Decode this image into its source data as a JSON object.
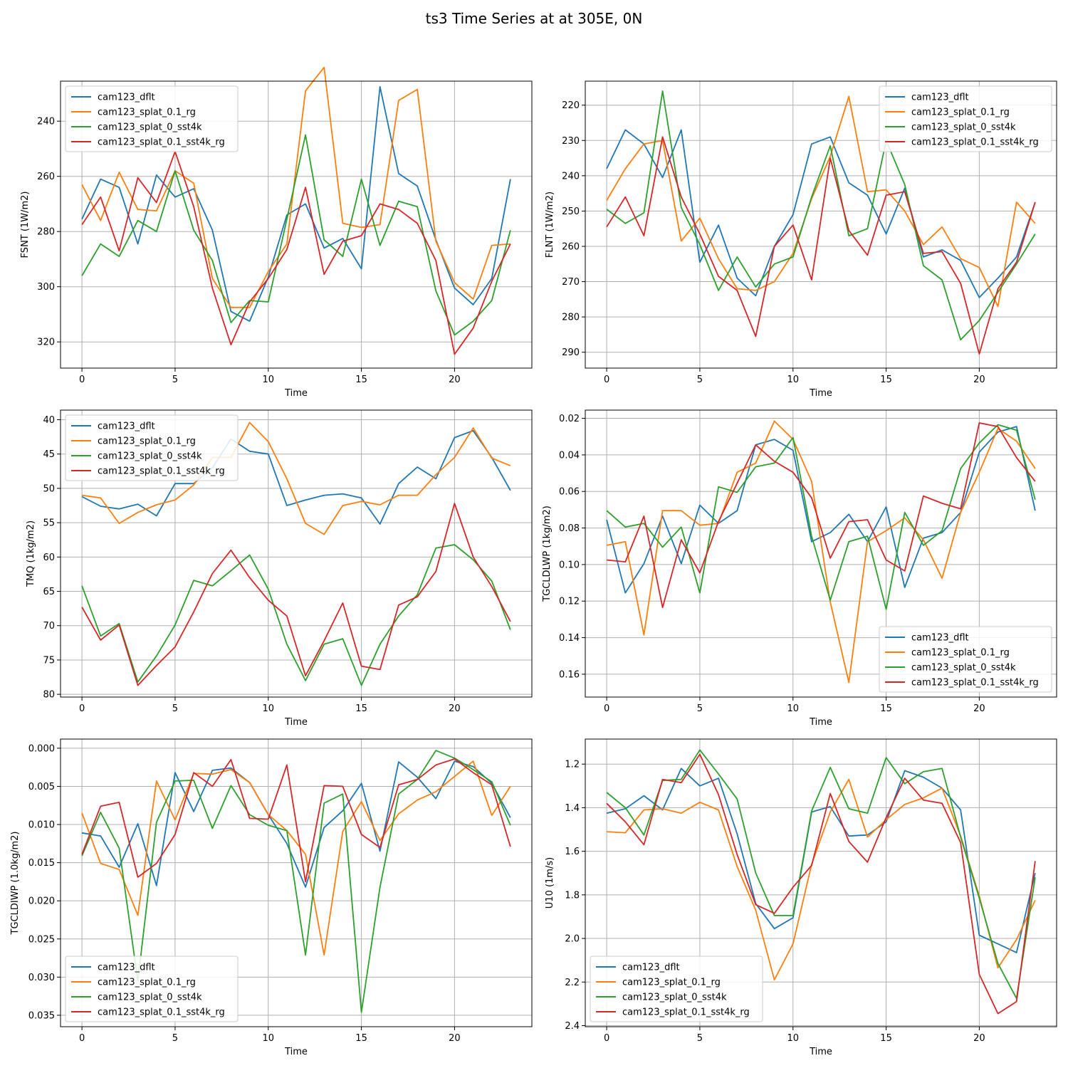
{
  "figure": {
    "title": "ts3 Time Series at at 305E, 0N"
  },
  "colors": {
    "cam123_dflt": "#1f77b4",
    "cam123_splat_0.1_rg": "#ff7f0e",
    "cam123_splat_0_sst4k": "#2ca02c",
    "cam123_splat_0.1_sst4k_rg": "#d62728"
  },
  "chart_data": [
    {
      "type": "line",
      "title": "",
      "xlabel": "Time",
      "ylabel": "FSNT (1W/m2)",
      "x": [
        0,
        1,
        2,
        3,
        4,
        5,
        6,
        7,
        8,
        9,
        10,
        11,
        12,
        13,
        14,
        15,
        16,
        17,
        18,
        19,
        20,
        21,
        22,
        23
      ],
      "xlim": [
        -1.15,
        24.15
      ],
      "ylim": [
        329.5,
        225.5
      ],
      "y_inverted": true,
      "xticks": [
        0,
        5,
        10,
        15,
        20
      ],
      "yticks": [
        240,
        260,
        280,
        300,
        320
      ],
      "grid": true,
      "legend": "top-left",
      "series": [
        {
          "name": "cam123_dflt",
          "values": [
            275.5,
            261,
            264,
            284.5,
            259.5,
            267.5,
            264.5,
            279.5,
            309,
            312.5,
            296.5,
            274,
            270,
            286,
            282.5,
            293.5,
            227.5,
            259,
            263.5,
            283,
            300.5,
            306.5,
            297,
            261
          ]
        },
        {
          "name": "cam123_splat_0.1_rg",
          "values": [
            263,
            276,
            258.5,
            272,
            272.5,
            258,
            262.5,
            297,
            307.5,
            307.5,
            294.5,
            284.5,
            229,
            220.5,
            277,
            278.5,
            277.5,
            232.5,
            228.5,
            283.5,
            298.5,
            304.5,
            285,
            284.5
          ]
        },
        {
          "name": "cam123_splat_0_sst4k",
          "values": [
            296,
            284.5,
            289,
            276,
            280,
            258,
            279.5,
            290.5,
            313,
            305,
            305.5,
            275.5,
            245,
            283,
            289,
            261,
            285,
            269,
            271,
            301.5,
            317.5,
            312.5,
            305,
            279.5
          ]
        },
        {
          "name": "cam123_splat_0.1_sst4k_rg",
          "values": [
            277.5,
            267.5,
            287,
            260.5,
            269.5,
            251,
            271,
            300.5,
            321,
            305.5,
            297,
            286.5,
            264,
            295.5,
            283.5,
            281.5,
            270,
            272,
            277,
            290.5,
            324.5,
            315,
            298,
            284.5
          ]
        }
      ]
    },
    {
      "type": "line",
      "title": "",
      "xlabel": "Time",
      "ylabel": "FLNT (1W/m2)",
      "x": [
        0,
        1,
        2,
        3,
        4,
        5,
        6,
        7,
        8,
        9,
        10,
        11,
        12,
        13,
        14,
        15,
        16,
        17,
        18,
        19,
        20,
        21,
        22,
        23
      ],
      "xlim": [
        -1.15,
        24.15
      ],
      "ylim": [
        294.5,
        213.2
      ],
      "y_inverted": true,
      "xticks": [
        0,
        5,
        10,
        15,
        20
      ],
      "yticks": [
        220,
        230,
        240,
        250,
        260,
        270,
        280,
        290
      ],
      "grid": true,
      "legend": "top-right",
      "series": [
        {
          "name": "cam123_dflt",
          "values": [
            238,
            227,
            231,
            240.5,
            227,
            264.5,
            254,
            269,
            274,
            260,
            251,
            231,
            229,
            242,
            245.5,
            256.5,
            243.5,
            263,
            261,
            264,
            274.5,
            269,
            263,
            247.5
          ]
        },
        {
          "name": "cam123_splat_0.1_rg",
          "values": [
            247,
            238,
            231,
            230,
            258.5,
            252,
            263.5,
            272,
            272.5,
            270,
            262,
            246.5,
            234.5,
            217.5,
            244.5,
            244,
            250,
            259.5,
            254.5,
            263.5,
            266,
            277,
            247.5,
            253.5
          ]
        },
        {
          "name": "cam123_splat_0_sst4k",
          "values": [
            249.5,
            253.5,
            250.5,
            216,
            249,
            259.5,
            272.5,
            263,
            271.5,
            265,
            263,
            246,
            231.5,
            257,
            255,
            230,
            242.5,
            265.5,
            269.5,
            286.5,
            281,
            273,
            265,
            256.5
          ]
        },
        {
          "name": "cam123_splat_0.1_sst4k_rg",
          "values": [
            254.5,
            246,
            257,
            229,
            246,
            256.5,
            268.5,
            272.5,
            285.5,
            260,
            254,
            269.5,
            235,
            255.5,
            262.5,
            245.5,
            244.5,
            262,
            261.5,
            270.5,
            290.5,
            272,
            264.5,
            247.5
          ]
        }
      ]
    },
    {
      "type": "line",
      "title": "",
      "xlabel": "Time",
      "ylabel": "TMQ (1kg/m2)",
      "x": [
        0,
        1,
        2,
        3,
        4,
        5,
        6,
        7,
        8,
        9,
        10,
        11,
        12,
        13,
        14,
        15,
        16,
        17,
        18,
        19,
        20,
        21,
        22,
        23
      ],
      "xlim": [
        -1.15,
        24.15
      ],
      "ylim": [
        80.4,
        38.6
      ],
      "y_inverted": true,
      "xticks": [
        0,
        5,
        10,
        15,
        20
      ],
      "yticks": [
        40,
        45,
        50,
        55,
        60,
        65,
        70,
        75,
        80
      ],
      "grid": true,
      "legend": "top-left",
      "series": [
        {
          "name": "cam123_dflt",
          "values": [
            51.2,
            52.6,
            53,
            52.3,
            54,
            49.3,
            49.3,
            47,
            42.8,
            44.6,
            45,
            52.5,
            51.7,
            51,
            50.8,
            51.4,
            55.2,
            49.3,
            46.9,
            48.6,
            42.6,
            41.6,
            45.5,
            50.3
          ]
        },
        {
          "name": "cam123_splat_0.1_rg",
          "values": [
            51,
            51.4,
            55.1,
            53.5,
            52.4,
            51.7,
            49.5,
            45.5,
            45.5,
            40.4,
            43.2,
            48.6,
            55.1,
            56.7,
            52.5,
            51.9,
            52.4,
            51,
            51,
            48,
            45.5,
            41.2,
            45.6,
            46.7
          ]
        },
        {
          "name": "cam123_splat_0_sst4k",
          "values": [
            64.2,
            71.5,
            69.7,
            78.2,
            74.4,
            69.9,
            63.4,
            64.2,
            62,
            59.7,
            64.7,
            72.7,
            78,
            72.7,
            71.9,
            78.7,
            72.7,
            68.6,
            65.5,
            58.7,
            58.2,
            60.4,
            63.5,
            70.6
          ]
        },
        {
          "name": "cam123_splat_0.1_sst4k_rg",
          "values": [
            67.3,
            72.1,
            69.9,
            78.7,
            75.8,
            73.1,
            68,
            62.4,
            59,
            63,
            66.3,
            68.6,
            77.3,
            72.2,
            66.7,
            75.9,
            76.4,
            67,
            65.8,
            62.1,
            52.2,
            60,
            64.3,
            69.4
          ]
        }
      ]
    },
    {
      "type": "line",
      "title": "",
      "xlabel": "Time",
      "ylabel": "TGCLDLWP (1kg/m2)",
      "x": [
        0,
        1,
        2,
        3,
        4,
        5,
        6,
        7,
        8,
        9,
        10,
        11,
        12,
        13,
        14,
        15,
        16,
        17,
        18,
        19,
        20,
        21,
        22,
        23
      ],
      "xlim": [
        -1.15,
        24.15
      ],
      "ylim": [
        0.1725,
        0.0155
      ],
      "y_inverted": true,
      "xticks": [
        0,
        5,
        10,
        15,
        20
      ],
      "yticks": [
        0.02,
        0.04,
        0.06,
        0.08,
        0.1,
        0.12,
        0.14,
        0.16
      ],
      "grid": true,
      "legend": "bottom-right",
      "series": [
        {
          "name": "cam123_dflt",
          "values": [
            0.0755,
            0.1155,
            0.0995,
            0.0735,
            0.0995,
            0.0675,
            0.0775,
            0.0705,
            0.0345,
            0.0315,
            0.0375,
            0.0875,
            0.0825,
            0.0725,
            0.0875,
            0.0685,
            0.1125,
            0.0855,
            0.0825,
            0.0715,
            0.0385,
            0.0275,
            0.0245,
            0.0705
          ]
        },
        {
          "name": "cam123_splat_0.1_rg",
          "values": [
            0.0895,
            0.0875,
            0.1385,
            0.0705,
            0.0705,
            0.0785,
            0.0775,
            0.0495,
            0.0445,
            0.0215,
            0.0315,
            0.0545,
            0.1205,
            0.1645,
            0.0875,
            0.0815,
            0.0745,
            0.0865,
            0.1075,
            0.0715,
            0.0495,
            0.0255,
            0.0325,
            0.0475
          ]
        },
        {
          "name": "cam123_splat_0_sst4k",
          "values": [
            0.0705,
            0.0795,
            0.0775,
            0.0905,
            0.0795,
            0.1155,
            0.0575,
            0.0605,
            0.0465,
            0.0445,
            0.0305,
            0.0845,
            0.1195,
            0.0875,
            0.0845,
            0.1245,
            0.0715,
            0.0895,
            0.0815,
            0.0475,
            0.0335,
            0.0235,
            0.0265,
            0.0645
          ]
        },
        {
          "name": "cam123_splat_0.1_sst4k_rg",
          "values": [
            0.0975,
            0.0985,
            0.0735,
            0.1235,
            0.0865,
            0.1045,
            0.0765,
            0.0555,
            0.0345,
            0.0435,
            0.0495,
            0.0635,
            0.0965,
            0.0765,
            0.0755,
            0.0975,
            0.1035,
            0.0625,
            0.0665,
            0.0695,
            0.0225,
            0.0245,
            0.0415,
            0.0545
          ]
        }
      ]
    },
    {
      "type": "line",
      "title": "",
      "xlabel": "Time",
      "ylabel": "TGCLDIWP (1.0kg/m2)",
      "x": [
        0,
        1,
        2,
        3,
        4,
        5,
        6,
        7,
        8,
        9,
        10,
        11,
        12,
        13,
        14,
        15,
        16,
        17,
        18,
        19,
        20,
        21,
        22,
        23
      ],
      "xlim": [
        -1.15,
        24.15
      ],
      "ylim": [
        0.0365,
        -0.0012
      ],
      "y_inverted": true,
      "xticks": [
        0,
        5,
        10,
        15,
        20
      ],
      "yticks": [
        0.0,
        0.005,
        0.01,
        0.015,
        0.02,
        0.025,
        0.03,
        0.035
      ],
      "y_tick_decimals": 3,
      "grid": true,
      "legend": "bottom-left",
      "series": [
        {
          "name": "cam123_dflt",
          "values": [
            0.0111,
            0.0115,
            0.0156,
            0.0099,
            0.018,
            0.0032,
            0.0083,
            0.0029,
            0.0026,
            0.0045,
            0.0087,
            0.0125,
            0.0182,
            0.0104,
            0.0082,
            0.0046,
            0.0135,
            0.0018,
            0.0038,
            0.0066,
            0.0017,
            0.0024,
            0.0046,
            0.0091
          ]
        },
        {
          "name": "cam123_splat_0.1_rg",
          "values": [
            0.0085,
            0.0151,
            0.0159,
            0.0219,
            0.0043,
            0.0094,
            0.0033,
            0.0034,
            0.0028,
            0.0045,
            0.0087,
            0.0108,
            0.0139,
            0.0271,
            0.0109,
            0.007,
            0.0121,
            0.0086,
            0.0068,
            0.0057,
            0.0037,
            0.0017,
            0.0088,
            0.005
          ]
        },
        {
          "name": "cam123_splat_0_sst4k",
          "values": [
            0.0141,
            0.0084,
            0.0131,
            0.0305,
            0.0097,
            0.0043,
            0.0042,
            0.0105,
            0.0049,
            0.0087,
            0.0101,
            0.0108,
            0.0271,
            0.0072,
            0.006,
            0.0346,
            0.0182,
            0.006,
            0.0041,
            0.0003,
            0.0013,
            0.0028,
            0.0044,
            0.0101
          ]
        },
        {
          "name": "cam123_splat_0.1_sst4k_rg",
          "values": [
            0.0139,
            0.0076,
            0.0071,
            0.0169,
            0.0151,
            0.0113,
            0.0032,
            0.005,
            0.0015,
            0.0092,
            0.0093,
            0.0022,
            0.0175,
            0.0049,
            0.005,
            0.0113,
            0.013,
            0.0048,
            0.0041,
            0.0022,
            0.0014,
            0.0032,
            0.0048,
            0.0129
          ]
        }
      ]
    },
    {
      "type": "line",
      "title": "",
      "xlabel": "Time",
      "ylabel": "U10 (1m/s)",
      "x": [
        0,
        1,
        2,
        3,
        4,
        5,
        6,
        7,
        8,
        9,
        10,
        11,
        12,
        13,
        14,
        15,
        16,
        17,
        18,
        19,
        20,
        21,
        22,
        23
      ],
      "xlim": [
        -1.15,
        24.15
      ],
      "ylim": [
        2.405,
        1.085
      ],
      "y_inverted": true,
      "xticks": [
        0,
        5,
        10,
        15,
        20
      ],
      "yticks": [
        1.2,
        1.4,
        1.6,
        1.8,
        2.0,
        2.2,
        2.4
      ],
      "y_tick_decimals": 1,
      "grid": true,
      "legend": "bottom-left",
      "series": [
        {
          "name": "cam123_dflt",
          "values": [
            1.425,
            1.405,
            1.345,
            1.41,
            1.22,
            1.3,
            1.265,
            1.52,
            1.84,
            1.955,
            1.905,
            1.42,
            1.395,
            1.53,
            1.525,
            1.465,
            1.23,
            1.26,
            1.31,
            1.41,
            1.985,
            2.025,
            2.065,
            1.7
          ]
        },
        {
          "name": "cam123_splat_0.1_rg",
          "values": [
            1.51,
            1.515,
            1.41,
            1.405,
            1.425,
            1.375,
            1.41,
            1.67,
            1.87,
            2.19,
            2.025,
            1.66,
            1.42,
            1.27,
            1.535,
            1.455,
            1.385,
            1.355,
            1.31,
            1.53,
            1.805,
            2.135,
            2.005,
            1.825
          ]
        },
        {
          "name": "cam123_splat_0_sst4k",
          "values": [
            1.33,
            1.4,
            1.525,
            1.275,
            1.27,
            1.135,
            1.245,
            1.36,
            1.7,
            1.895,
            1.895,
            1.415,
            1.215,
            1.405,
            1.425,
            1.17,
            1.29,
            1.235,
            1.22,
            1.535,
            1.815,
            2.115,
            2.275,
            1.72
          ]
        },
        {
          "name": "cam123_splat_0.1_sst4k_rg",
          "values": [
            1.38,
            1.465,
            1.57,
            1.27,
            1.285,
            1.155,
            1.34,
            1.615,
            1.845,
            1.885,
            1.765,
            1.665,
            1.335,
            1.555,
            1.65,
            1.445,
            1.265,
            1.365,
            1.38,
            1.56,
            2.165,
            2.345,
            2.29,
            1.645
          ]
        }
      ]
    }
  ]
}
